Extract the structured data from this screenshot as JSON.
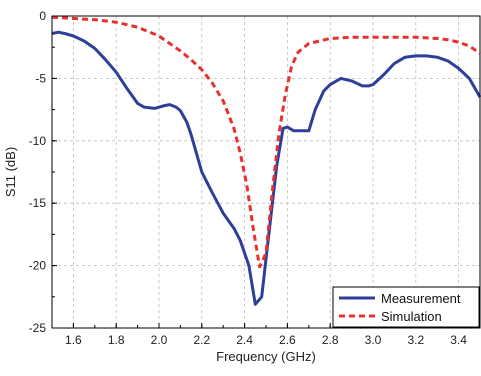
{
  "chart_data": {
    "type": "line",
    "xlabel": "Frequency (GHz)",
    "ylabel": "S11 (dB)",
    "xlim": [
      1.5,
      3.5
    ],
    "ylim": [
      -25,
      0
    ],
    "xticks": [
      1.6,
      1.8,
      2.0,
      2.2,
      2.4,
      2.6,
      2.8,
      3.0,
      3.2,
      3.4
    ],
    "xtick_labels": [
      "1.6",
      "1.8",
      "2.0",
      "2.2",
      "2.4",
      "2.6",
      "2.8",
      "3.0",
      "3.2",
      "3.4"
    ],
    "yticks": [
      0,
      -5,
      -10,
      -15,
      -20,
      -25
    ],
    "ytick_labels": [
      "0",
      "-5",
      "-10",
      "-15",
      "-20",
      "-25"
    ],
    "grid": true,
    "legend_position": "bottom-right",
    "series": [
      {
        "name": "Measurement",
        "color": "#2e3f9a",
        "style": "solid",
        "x": [
          1.5,
          1.53,
          1.56,
          1.6,
          1.65,
          1.7,
          1.75,
          1.8,
          1.85,
          1.9,
          1.93,
          1.98,
          2.02,
          2.05,
          2.08,
          2.1,
          2.13,
          2.15,
          2.2,
          2.25,
          2.3,
          2.35,
          2.38,
          2.42,
          2.45,
          2.48,
          2.51,
          2.55,
          2.58,
          2.6,
          2.63,
          2.67,
          2.7,
          2.73,
          2.77,
          2.8,
          2.85,
          2.9,
          2.95,
          2.98,
          3.0,
          3.05,
          3.1,
          3.15,
          3.2,
          3.25,
          3.3,
          3.35,
          3.4,
          3.45,
          3.5
        ],
        "y": [
          -1.4,
          -1.3,
          -1.4,
          -1.6,
          -2.0,
          -2.6,
          -3.5,
          -4.5,
          -5.8,
          -7.0,
          -7.3,
          -7.4,
          -7.2,
          -7.1,
          -7.3,
          -7.6,
          -8.5,
          -9.5,
          -12.5,
          -14.2,
          -15.8,
          -17.0,
          -18.0,
          -20.0,
          -23.1,
          -22.5,
          -18.0,
          -12.0,
          -9.0,
          -8.9,
          -9.2,
          -9.2,
          -9.2,
          -7.5,
          -6.0,
          -5.5,
          -5.0,
          -5.2,
          -5.6,
          -5.6,
          -5.5,
          -4.7,
          -3.8,
          -3.3,
          -3.2,
          -3.2,
          -3.3,
          -3.6,
          -4.2,
          -5.0,
          -6.5
        ]
      },
      {
        "name": "Simulation",
        "color": "#e8302f",
        "style": "dashed",
        "x": [
          1.5,
          1.6,
          1.7,
          1.8,
          1.9,
          2.0,
          2.05,
          2.1,
          2.15,
          2.2,
          2.25,
          2.3,
          2.35,
          2.38,
          2.41,
          2.44,
          2.47,
          2.5,
          2.53,
          2.56,
          2.59,
          2.62,
          2.65,
          2.7,
          2.8,
          2.9,
          3.0,
          3.1,
          3.2,
          3.3,
          3.35,
          3.4,
          3.45,
          3.5
        ],
        "y": [
          -0.1,
          -0.2,
          -0.3,
          -0.5,
          -0.9,
          -1.6,
          -2.2,
          -2.8,
          -3.5,
          -4.3,
          -5.4,
          -6.8,
          -9.0,
          -11.0,
          -13.5,
          -17.0,
          -20.1,
          -19.0,
          -14.0,
          -9.5,
          -6.3,
          -4.0,
          -2.9,
          -2.2,
          -1.8,
          -1.7,
          -1.7,
          -1.7,
          -1.7,
          -1.8,
          -1.9,
          -2.1,
          -2.4,
          -3.0
        ]
      }
    ]
  }
}
